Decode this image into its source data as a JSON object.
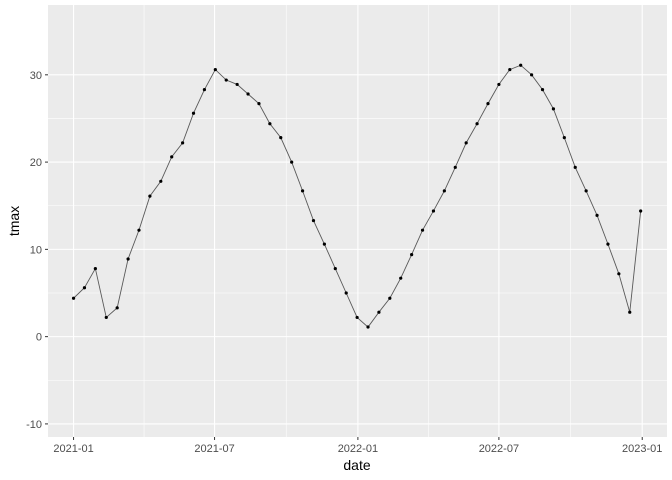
{
  "chart_data": {
    "type": "line",
    "xlabel": "date",
    "ylabel": "tmax",
    "x_range": [
      "2021-01-01",
      "2022-12-31"
    ],
    "ylim": [
      -11.5,
      38
    ],
    "x_ticks": [
      {
        "date": "2021-01-01",
        "label": "2021-01"
      },
      {
        "date": "2021-07-01",
        "label": "2021-07"
      },
      {
        "date": "2022-01-01",
        "label": "2022-01"
      },
      {
        "date": "2022-07-01",
        "label": "2022-07"
      },
      {
        "date": "2023-01-01",
        "label": "2023-01"
      }
    ],
    "y_ticks": [
      -10,
      0,
      10,
      20,
      30
    ],
    "grid": true,
    "colors": {
      "panel": "#ebebeb",
      "grid_major": "#ffffff",
      "line": "#595959",
      "point": "#000000"
    },
    "series": [
      {
        "x": [
          "2021-01-01",
          "2021-01-15",
          "2021-01-29",
          "2021-02-12",
          "2021-02-26",
          "2021-03-12",
          "2021-03-26",
          "2021-04-09",
          "2021-04-23",
          "2021-05-07",
          "2021-05-21",
          "2021-06-04",
          "2021-06-18",
          "2021-07-02",
          "2021-07-16",
          "2021-07-30",
          "2021-08-13",
          "2021-08-27",
          "2021-09-10",
          "2021-09-24",
          "2021-10-08",
          "2021-10-22",
          "2021-11-05",
          "2021-11-19",
          "2021-12-03",
          "2021-12-17",
          "2021-12-31",
          "2022-01-14",
          "2022-01-28",
          "2022-02-11",
          "2022-02-25",
          "2022-03-11",
          "2022-03-25",
          "2022-04-08",
          "2022-04-22",
          "2022-05-06",
          "2022-05-20",
          "2022-06-03",
          "2022-06-17",
          "2022-07-01",
          "2022-07-15",
          "2022-07-29",
          "2022-08-12",
          "2022-08-26",
          "2022-09-09",
          "2022-09-23",
          "2022-10-07",
          "2022-10-21",
          "2022-11-04",
          "2022-11-18",
          "2022-12-02",
          "2022-12-16",
          "2022-12-30"
        ],
        "values": [
          4.4,
          5.6,
          7.8,
          2.2,
          3.3,
          8.9,
          12.2,
          16.1,
          17.8,
          20.6,
          22.2,
          25.6,
          28.3,
          30.6,
          29.4,
          28.9,
          27.8,
          26.7,
          24.4,
          22.8,
          20.0,
          16.7,
          13.3,
          10.6,
          7.8,
          5.0,
          2.2,
          1.1,
          2.8,
          4.4,
          6.7,
          9.4,
          12.2,
          14.4,
          16.7,
          19.4,
          22.2,
          24.4,
          26.7,
          28.9,
          30.6,
          31.1,
          30.0,
          28.3,
          26.1,
          22.8,
          19.4,
          16.7,
          13.9,
          10.6,
          7.2,
          2.8,
          14.4
        ]
      }
    ]
  }
}
